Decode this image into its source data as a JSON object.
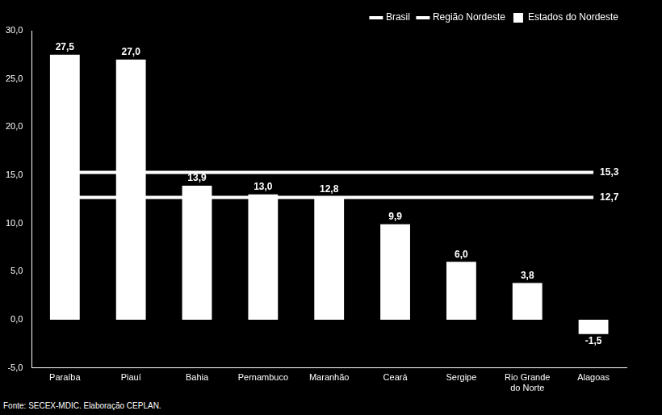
{
  "chart_data": {
    "type": "bar",
    "categories": [
      "Paraíba",
      "Piauí",
      "Bahia",
      "Pernambuco",
      "Maranhão",
      "Ceará",
      "Sergipe",
      "Rio Grande do Norte",
      "Alagoas"
    ],
    "series": [
      {
        "name": "Estados do Nordeste",
        "type": "bar",
        "color": "#ffffff",
        "values": [
          27.5,
          27.0,
          13.9,
          13.0,
          12.8,
          9.9,
          6.0,
          3.8,
          -1.5
        ],
        "value_labels": [
          "27,5",
          "27,0",
          "13,9",
          "13,0",
          "12,8",
          "9,9",
          "6,0",
          "3,8",
          "-1,5"
        ]
      },
      {
        "name": "Brasil",
        "type": "line",
        "color": "#ffffff",
        "values": [
          15.3,
          15.3,
          15.3,
          15.3,
          15.3,
          15.3,
          15.3,
          15.3,
          15.3
        ],
        "value_labels": [
          null,
          null,
          null,
          null,
          null,
          null,
          null,
          null,
          "15,3"
        ]
      },
      {
        "name": "Região Nordeste",
        "type": "line",
        "color": "#ffffff",
        "values": [
          12.7,
          12.7,
          12.7,
          12.7,
          12.7,
          12.7,
          12.7,
          12.7,
          12.7
        ],
        "value_labels": [
          null,
          null,
          null,
          null,
          null,
          null,
          null,
          null,
          "12,7"
        ]
      }
    ],
    "ylim": [
      -5,
      30
    ],
    "yticks": [
      {
        "value": -5,
        "label": "-5,0"
      },
      {
        "value": 0,
        "label": "0,0"
      },
      {
        "value": 5,
        "label": "5,0"
      },
      {
        "value": 10,
        "label": "10,0"
      },
      {
        "value": 15,
        "label": "15,0"
      },
      {
        "value": 20,
        "label": "20,0"
      },
      {
        "value": 25,
        "label": "25,0"
      },
      {
        "value": 30,
        "label": "30,0"
      }
    ],
    "grid": false,
    "legend": "top-right",
    "data_labels": true,
    "source": "Fonte: SECEX-MDIC. Elaboração CEPLAN."
  }
}
